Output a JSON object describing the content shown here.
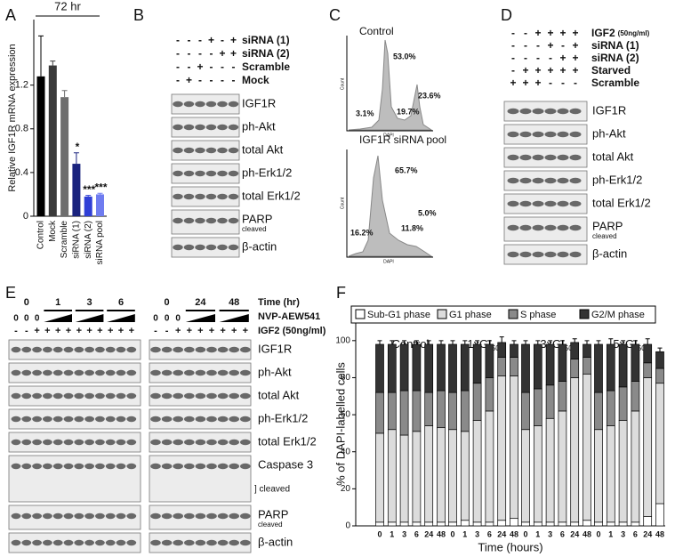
{
  "panel_labels": [
    "A",
    "B",
    "C",
    "D",
    "E",
    "F"
  ],
  "chart_data": [
    {
      "type": "bar",
      "title": "72 hr",
      "y_label": "Relative IGF1R mRNA expression",
      "categories": [
        "Control",
        "Mock",
        "Scramble",
        "siRNA (1)",
        "siRNA (2)",
        "siRNA pool"
      ],
      "values": [
        1.28,
        1.38,
        1.09,
        0.48,
        0.18,
        0.2
      ],
      "errors": [
        0.37,
        0.04,
        0.06,
        0.1,
        0.01,
        0.01
      ],
      "value_annotations": [
        null,
        null,
        null,
        "*",
        "***",
        "***"
      ],
      "colors": [
        "#000000",
        "#3a3a3a",
        "#6e6e6e",
        "#1a237e",
        "#2f3fd6",
        "#6f7cf0"
      ],
      "ylim": [
        0,
        1.8
      ],
      "yticks": [
        0,
        0.4,
        0.8,
        1.2
      ]
    },
    {
      "type": "stacked_bar",
      "y_label": "% of DAPI-labelled cells",
      "x_label": "Time (hours)",
      "groups": [
        {
          "name": "Control"
        },
        {
          "name": "1xGI",
          "sub": "50"
        },
        {
          "name": "3xGI",
          "sub": "50"
        },
        {
          "name": "5xGI",
          "sub": "50"
        }
      ],
      "categories": [
        "0",
        "1",
        "3",
        "6",
        "24",
        "48",
        "0",
        "1",
        "3",
        "6",
        "24",
        "48",
        "0",
        "1",
        "3",
        "6",
        "24",
        "48",
        "0",
        "1",
        "3",
        "6",
        "24",
        "48"
      ],
      "series": [
        {
          "name": "Sub-G1 phase",
          "color": "#ffffff",
          "values": [
            2,
            2,
            2,
            2,
            2,
            2,
            2,
            3,
            2,
            2,
            3,
            4,
            2,
            2,
            2,
            2,
            2,
            3,
            2,
            2,
            2,
            2,
            5,
            12
          ]
        },
        {
          "name": "G1 phase",
          "color": "#dcdcdc",
          "values": [
            48,
            50,
            47,
            49,
            52,
            51,
            50,
            48,
            55,
            60,
            78,
            77,
            50,
            52,
            56,
            60,
            78,
            79,
            50,
            52,
            55,
            60,
            75,
            65
          ]
        },
        {
          "name": "S phase",
          "color": "#8a8a8a",
          "values": [
            22,
            20,
            24,
            22,
            18,
            20,
            20,
            22,
            20,
            18,
            10,
            10,
            20,
            20,
            18,
            16,
            10,
            9,
            20,
            19,
            18,
            16,
            8,
            8
          ]
        },
        {
          "name": "G2/M phase",
          "color": "#333333",
          "values": [
            26,
            26,
            25,
            25,
            26,
            25,
            26,
            25,
            21,
            18,
            8,
            7,
            26,
            24,
            22,
            20,
            9,
            7,
            26,
            25,
            23,
            20,
            10,
            9
          ],
          "errors": [
            2,
            2,
            2,
            2,
            2,
            2,
            2,
            2,
            2,
            2,
            3,
            2,
            2,
            2,
            2,
            2,
            2,
            2,
            2,
            3,
            2,
            2,
            3,
            2
          ]
        }
      ],
      "ylim": [
        0,
        110
      ],
      "yticks": [
        0,
        20,
        40,
        60,
        80,
        100
      ]
    }
  ],
  "blot_b": {
    "conditions": [
      {
        "name": "siRNA (1)",
        "signs": [
          "-",
          "-",
          "-",
          "+",
          "-",
          "+"
        ]
      },
      {
        "name": "siRNA (2)",
        "signs": [
          "-",
          "-",
          "-",
          "-",
          "+",
          "+"
        ]
      },
      {
        "name": "Scramble",
        "signs": [
          "-",
          "-",
          "+",
          "-",
          "-",
          "-"
        ]
      },
      {
        "name": "Mock",
        "signs": [
          "-",
          "+",
          "-",
          "-",
          "-",
          "-"
        ]
      }
    ],
    "rows": [
      {
        "label": "IGF1R"
      },
      {
        "label": "ph-Akt"
      },
      {
        "label": "total Akt"
      },
      {
        "label": "ph-Erk1/2"
      },
      {
        "label": "total Erk1/2"
      },
      {
        "label": "PARP",
        "sub": "cleaved"
      },
      {
        "label": "β-actin"
      }
    ]
  },
  "flow_c": {
    "histograms": [
      {
        "title": "Control",
        "y_label": "Count",
        "x_label": "DAPI",
        "percents": [
          "3.1%",
          "19.7%",
          "53.0%",
          "23.6%"
        ]
      },
      {
        "title": "IGF1R siRNA pool",
        "y_label": "Count",
        "x_label": "DAPI",
        "percents": [
          "16.2%",
          "11.8%",
          "65.7%",
          "5.0%"
        ]
      }
    ]
  },
  "blot_d": {
    "conditions": [
      {
        "name": "IGF2",
        "note": "(50ng/ml)",
        "signs": [
          "-",
          "-",
          "+",
          "+",
          "+",
          "+"
        ]
      },
      {
        "name": "siRNA (1)",
        "signs": [
          "-",
          "-",
          "-",
          "+",
          "-",
          "+"
        ]
      },
      {
        "name": "siRNA (2)",
        "signs": [
          "-",
          "-",
          "-",
          "-",
          "+",
          "+"
        ]
      },
      {
        "name": "Starved",
        "signs": [
          "-",
          "+",
          "+",
          "+",
          "+",
          "+"
        ]
      },
      {
        "name": "Scramble",
        "signs": [
          "+",
          "+",
          "+",
          "-",
          "-",
          "-"
        ]
      }
    ],
    "rows": [
      {
        "label": "IGF1R"
      },
      {
        "label": "ph-Akt"
      },
      {
        "label": "total Akt"
      },
      {
        "label": "ph-Erk1/2"
      },
      {
        "label": "total Erk1/2"
      },
      {
        "label": "PARP",
        "sub": "cleaved"
      },
      {
        "label": "β-actin"
      }
    ]
  },
  "blot_e": {
    "header_labels": {
      "time": "Time (hr)",
      "nvp": "NVP-AEW541",
      "igf2": "IGF2 (50ng/ml)"
    },
    "left": {
      "times": [
        "0",
        "1",
        "3",
        "6"
      ],
      "nvp_zero": [
        "0",
        "0",
        "0"
      ],
      "igf2": [
        "-",
        "-",
        "+",
        "+",
        "+",
        "+",
        "+",
        "+",
        "+",
        "+",
        "+",
        "+"
      ]
    },
    "right": {
      "times": [
        "0",
        "24",
        "48"
      ],
      "nvp_zero": [
        "0",
        "0",
        "0"
      ],
      "igf2": [
        "-",
        "-",
        "+",
        "+",
        "+",
        "+",
        "+",
        "+",
        "+"
      ]
    },
    "rows": [
      {
        "label": "IGF1R"
      },
      {
        "label": "ph-Akt"
      },
      {
        "label": "total Akt"
      },
      {
        "label": "ph-Erk1/2"
      },
      {
        "label": "total Erk1/2"
      },
      {
        "label": "Caspase 3",
        "bracket": "] cleaved"
      },
      {
        "label": "PARP",
        "sub": "cleaved"
      },
      {
        "label": "β-actin"
      }
    ]
  }
}
